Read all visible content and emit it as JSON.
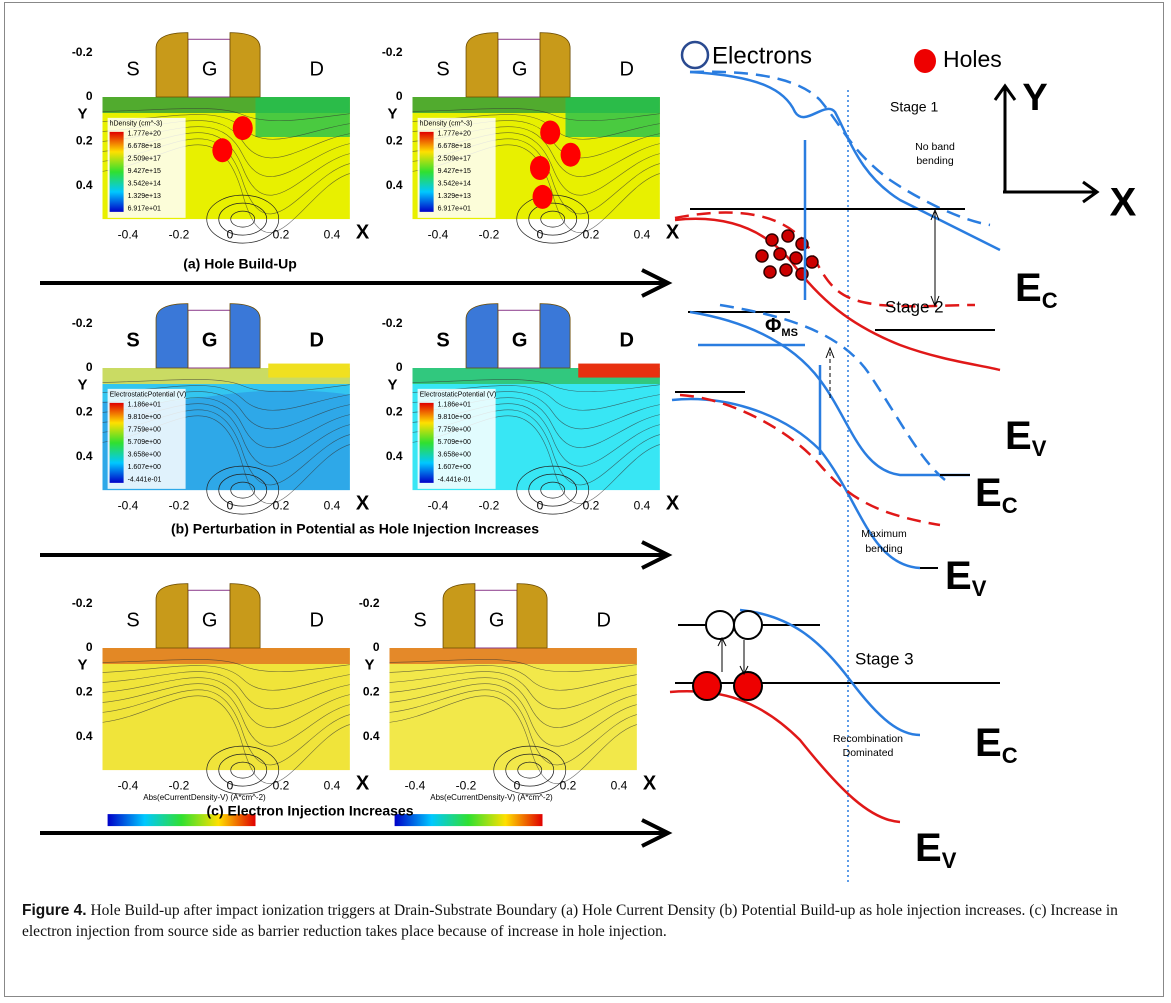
{
  "axes": {
    "xticks": [
      "-0.4",
      "-0.2",
      "0",
      "0.2",
      "0.4"
    ],
    "yticks": [
      "-0.2",
      "0",
      "0.2",
      "0.4"
    ],
    "x_label": "X",
    "y_label": "Y"
  },
  "panels": [
    {
      "caption": "(a) Hole Build-Up",
      "device_labels": [
        "S",
        "G",
        "D"
      ],
      "legend": {
        "title": "hDensity (cm^-3)",
        "values": [
          "1.777e+20",
          "6.678e+18",
          "2.509e+17",
          "9.427e+15",
          "3.542e+14",
          "1.329e+13",
          "6.917e+01"
        ]
      }
    },
    {
      "caption": "(b) Perturbation in Potential as Hole Injection Increases",
      "device_labels": [
        "S",
        "G",
        "D"
      ],
      "legend": {
        "title": "ElectrostaticPotential (V)",
        "values": [
          "1.186e+01",
          "9.810e+00",
          "7.759e+00",
          "5.709e+00",
          "3.658e+00",
          "1.607e+00",
          "-4.441e-01"
        ]
      }
    },
    {
      "caption": "(c) Electron Injection Increases",
      "device_labels": [
        "S",
        "G",
        "D"
      ],
      "x_title": "Abs(eCurrentDensity-V) (A*cm^-2)"
    }
  ],
  "band_diagram": {
    "electrons": "Electrons",
    "holes": "Holes",
    "stages": [
      "Stage 1",
      "Stage 2",
      "Stage 3"
    ],
    "notes": [
      "No band",
      "bending",
      "Maximum",
      "bending",
      "Recombination",
      "Dominated"
    ],
    "phi": {
      "main": "Φ",
      "sub": "MS"
    },
    "axis_y": "Y",
    "axis_x": "X",
    "band_labels": [
      {
        "main": "E",
        "sub": "C"
      },
      {
        "main": "E",
        "sub": "V"
      }
    ]
  },
  "caption": {
    "label": "Figure 4.",
    "text": "Hole Build-up after impact ionization triggers at Drain-Substrate Boundary (a) Hole Current Density (b) Potential Build-up as hole injection increases. (c) Increase in electron injection from source side as barrier reduction takes place because of increase in hole injection."
  }
}
